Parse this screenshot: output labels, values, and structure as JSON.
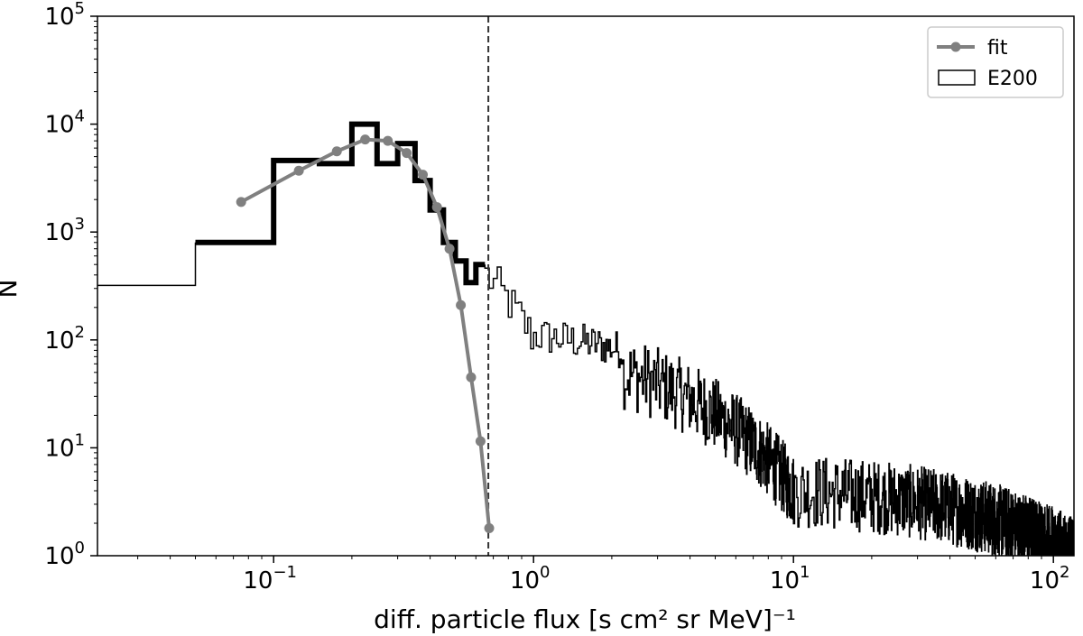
{
  "chart_data": {
    "type": "histogram-line",
    "xlabel": "diff. particle flux [s cm² sr MeV]⁻¹",
    "ylabel": "N",
    "xscale": "log",
    "yscale": "log",
    "xlim": [
      0.021,
      120
    ],
    "ylim": [
      1,
      100000
    ],
    "x_ticks": [
      {
        "base": "10",
        "exp": "−1",
        "value": 0.1
      },
      {
        "base": "10",
        "exp": "0",
        "value": 1
      },
      {
        "base": "10",
        "exp": "1",
        "value": 10
      },
      {
        "base": "10",
        "exp": "2",
        "value": 100
      }
    ],
    "y_ticks": [
      {
        "base": "10",
        "exp": "0",
        "value": 1
      },
      {
        "base": "10",
        "exp": "1",
        "value": 10
      },
      {
        "base": "10",
        "exp": "2",
        "value": 100
      },
      {
        "base": "10",
        "exp": "3",
        "value": 1000
      },
      {
        "base": "10",
        "exp": "4",
        "value": 10000
      },
      {
        "base": "10",
        "exp": "5",
        "value": 100000
      }
    ],
    "legend": {
      "position": "top-right",
      "entries": [
        {
          "label": "fit",
          "style": "line-marker",
          "color": "#808080"
        },
        {
          "label": "E200",
          "style": "box",
          "color": "#000000"
        }
      ]
    },
    "vline": {
      "x": 0.67,
      "style": "dashed",
      "color": "#333333"
    },
    "fit": {
      "name": "fit",
      "color": "#808080",
      "x": [
        0.075,
        0.125,
        0.175,
        0.225,
        0.275,
        0.325,
        0.375,
        0.425,
        0.475,
        0.525,
        0.575,
        0.625,
        0.675
      ],
      "y": [
        1900,
        3700,
        5600,
        7200,
        7000,
        5400,
        3400,
        1700,
        700,
        210,
        45,
        11.5,
        1.8
      ]
    },
    "E200_coarse_bins": {
      "name": "E200",
      "color": "#000000",
      "edges": [
        0.05,
        0.1,
        0.15,
        0.2,
        0.25,
        0.3,
        0.35,
        0.4,
        0.45,
        0.5,
        0.55,
        0.6,
        0.65
      ],
      "counts": [
        800,
        4600,
        4300,
        10000,
        4300,
        6600,
        3000,
        1600,
        800,
        540,
        340,
        500
      ]
    },
    "E200_first_bin": {
      "x0": 0.021,
      "x1": 0.05,
      "count": 320
    },
    "E200_fine_bins": {
      "segments": [
        {
          "x0": 0.65,
          "x1": 1.0,
          "ystart": 400,
          "yend": 100,
          "step": 0.025,
          "spread": 1.6,
          "min": 1
        },
        {
          "x0": 1.0,
          "x1": 2.2,
          "ystart": 110,
          "yend": 80,
          "step": 0.025,
          "spread": 1.5,
          "min": 1
        },
        {
          "x0": 2.2,
          "x1": 10,
          "ystart": 50,
          "yend": 4,
          "step": 0.025,
          "spread": 2.2,
          "min": 1
        },
        {
          "x0": 10,
          "x1": 120,
          "ystart": 4,
          "yend": 1,
          "step": 0.1,
          "spread": 2.2,
          "min": 1
        }
      ]
    }
  }
}
